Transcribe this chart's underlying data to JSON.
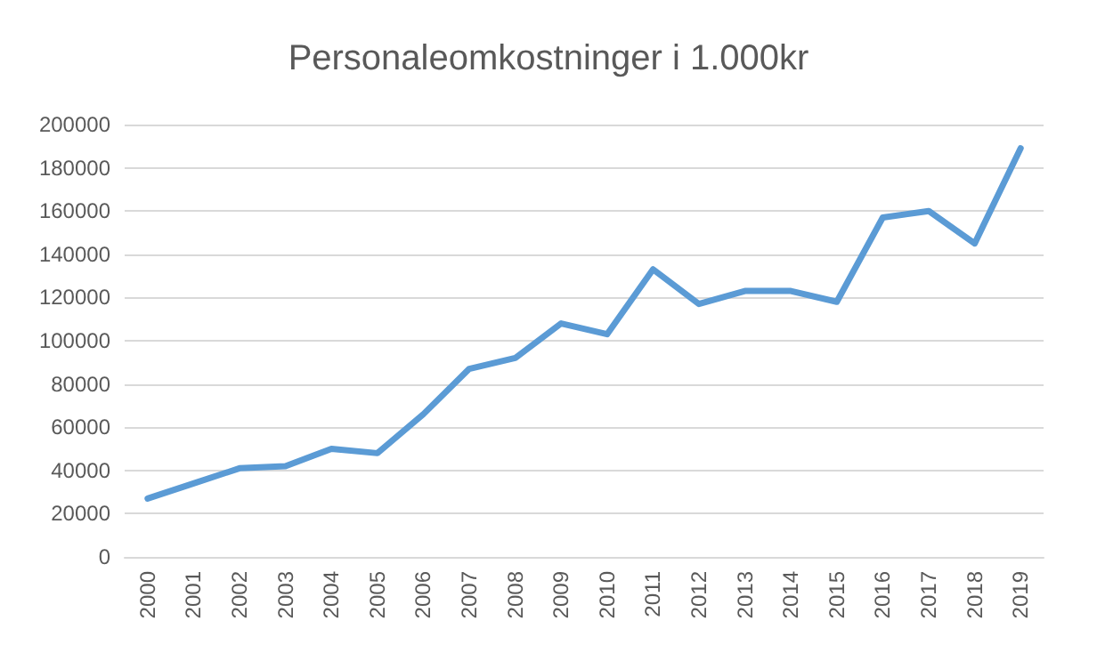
{
  "chart_data": {
    "type": "line",
    "title": "Personaleomkostninger i 1.000kr",
    "categories": [
      "2000",
      "2001",
      "2002",
      "2003",
      "2004",
      "2005",
      "2006",
      "2007",
      "2008",
      "2009",
      "2010",
      "2011",
      "2012",
      "2013",
      "2014",
      "2015",
      "2016",
      "2017",
      "2018",
      "2019"
    ],
    "series": [
      {
        "color": "#5b9bd5",
        "values": [
          27000,
          34000,
          41000,
          42000,
          50000,
          48000,
          66000,
          87000,
          92000,
          108000,
          103000,
          133000,
          117000,
          123000,
          123000,
          118000,
          157000,
          160000,
          145000,
          189000
        ]
      }
    ],
    "ylim": [
      0,
      200000
    ],
    "yticks": [
      0,
      20000,
      40000,
      60000,
      80000,
      100000,
      120000,
      140000,
      160000,
      180000,
      200000
    ],
    "grid": "y",
    "marker": "none",
    "line_style": "solid"
  }
}
